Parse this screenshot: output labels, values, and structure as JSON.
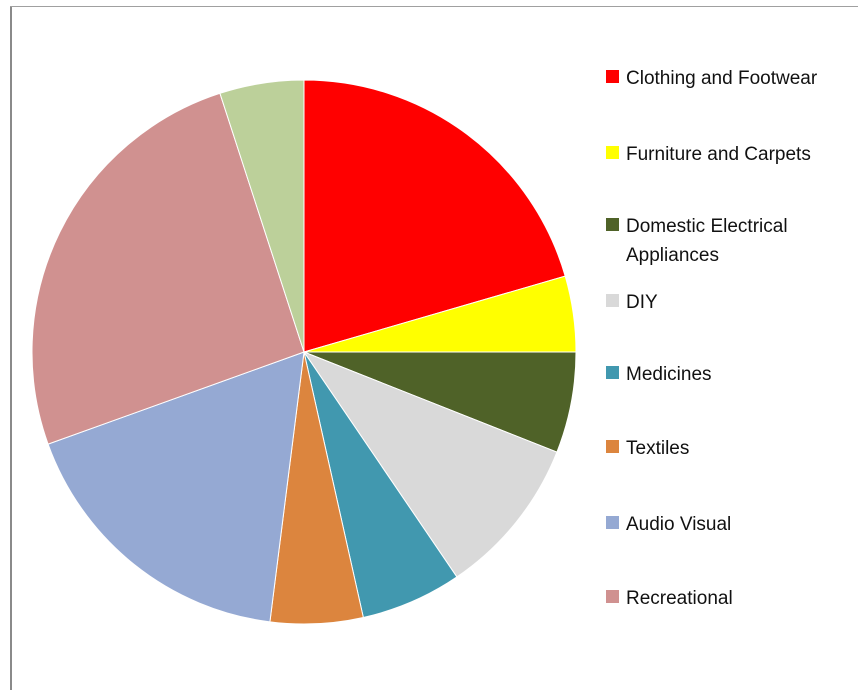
{
  "chart_data": {
    "type": "pie",
    "title": "",
    "legend_position": "right",
    "slices": [
      {
        "label": "Clothing and Footwear",
        "value": 20.5,
        "color": "#ff0000"
      },
      {
        "label": "Furniture and Carpets",
        "value": 4.5,
        "color": "#ffff00"
      },
      {
        "label": "Domestic Electrical Appliances",
        "value": 6.0,
        "color": "#4f6228"
      },
      {
        "label": "DIY",
        "value": 9.5,
        "color": "#d9d9d9"
      },
      {
        "label": "Medicines",
        "value": 6.0,
        "color": "#4198af"
      },
      {
        "label": "Textiles",
        "value": 5.5,
        "color": "#dc853e"
      },
      {
        "label": "Audio Visual",
        "value": 17.5,
        "color": "#95a9d3"
      },
      {
        "label": "Recreational",
        "value": 25.5,
        "color": "#d09190"
      },
      {
        "label": "",
        "value": 5.0,
        "color": "#bcd09a"
      }
    ]
  }
}
